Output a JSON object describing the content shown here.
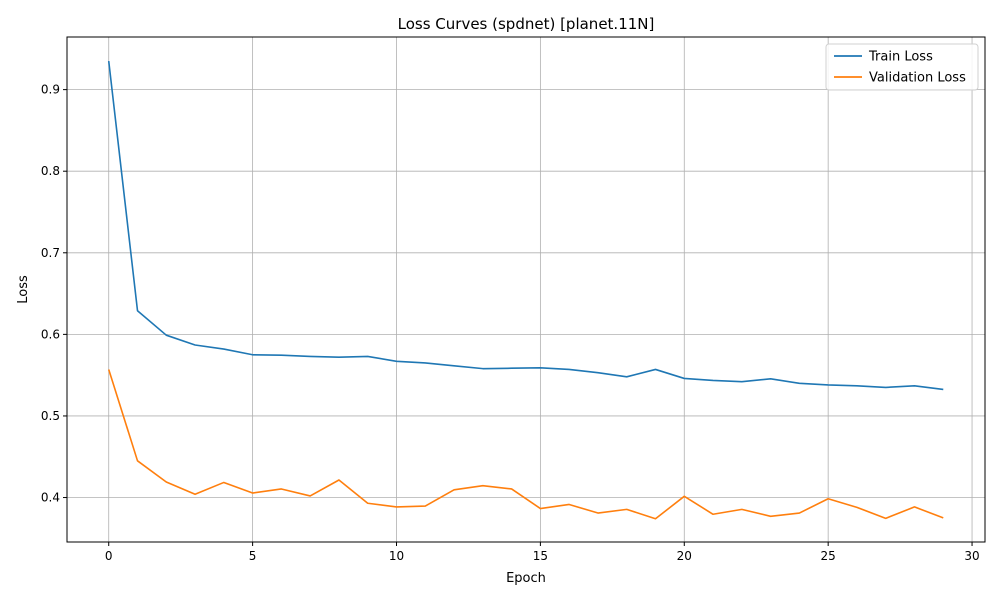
{
  "chart_data": {
    "type": "line",
    "title": "Loss Curves (spdnet) [planet.11N]",
    "xlabel": "Epoch",
    "ylabel": "Loss",
    "xlim": [
      -1.45,
      30.45
    ],
    "ylim": [
      0.3455,
      0.9645
    ],
    "xticks": [
      0,
      5,
      10,
      15,
      20,
      25,
      30
    ],
    "yticks": [
      0.4,
      0.5,
      0.6,
      0.7,
      0.8,
      0.9
    ],
    "grid": true,
    "legend_position": "top-right",
    "x": [
      0,
      1,
      2,
      3,
      4,
      5,
      6,
      7,
      8,
      9,
      10,
      11,
      12,
      13,
      14,
      15,
      16,
      17,
      18,
      19,
      20,
      21,
      22,
      23,
      24,
      25,
      26,
      27,
      28,
      29
    ],
    "series": [
      {
        "name": "Train Loss",
        "color": "#1f77b4",
        "values": [
          0.935,
          0.629,
          0.599,
          0.587,
          0.582,
          0.575,
          0.5745,
          0.573,
          0.572,
          0.573,
          0.567,
          0.565,
          0.5615,
          0.558,
          0.5585,
          0.559,
          0.557,
          0.553,
          0.548,
          0.557,
          0.546,
          0.5435,
          0.542,
          0.5455,
          0.54,
          0.538,
          0.537,
          0.535,
          0.537,
          0.5325
        ]
      },
      {
        "name": "Validation Loss",
        "color": "#ff7f0e",
        "values": [
          0.557,
          0.445,
          0.419,
          0.404,
          0.4185,
          0.4055,
          0.4105,
          0.402,
          0.4215,
          0.393,
          0.3885,
          0.3895,
          0.4095,
          0.4145,
          0.4105,
          0.3865,
          0.3915,
          0.381,
          0.3855,
          0.374,
          0.4015,
          0.3795,
          0.3855,
          0.377,
          0.381,
          0.3985,
          0.388,
          0.3745,
          0.3885,
          0.375
        ]
      }
    ]
  }
}
